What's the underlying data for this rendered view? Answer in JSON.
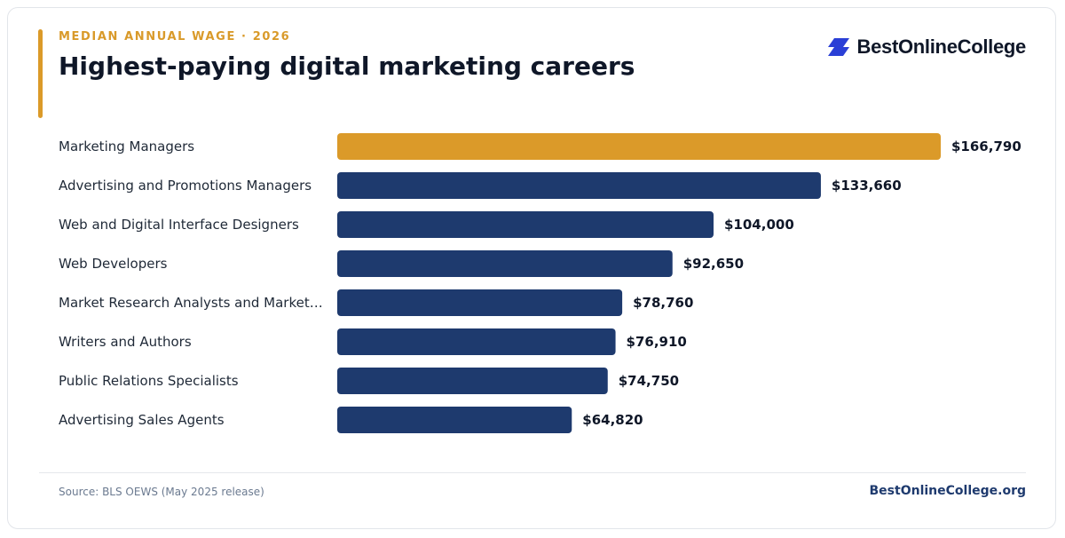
{
  "header": {
    "eyebrow": "MEDIAN ANNUAL WAGE · 2026",
    "title": "Highest-paying digital marketing careers"
  },
  "brand": {
    "name": "BestOnlineCollege",
    "icon": "bestonlinecollege-logo-icon",
    "color": "#2a3fd6"
  },
  "colors": {
    "accent": "#db9a29",
    "bar": "#1e3a6e",
    "text": "#0f1728"
  },
  "chart_data": {
    "type": "bar",
    "orientation": "horizontal",
    "title": "Highest-paying digital marketing careers",
    "subtitle": "MEDIAN ANNUAL WAGE · 2026",
    "categories": [
      "Marketing Managers",
      "Advertising and Promotions Managers",
      "Web and Digital Interface Designers",
      "Web Developers",
      "Market Research Analysts and Market…",
      "Writers and Authors",
      "Public Relations Specialists",
      "Advertising Sales Agents"
    ],
    "values": [
      166790,
      133660,
      104000,
      92650,
      78760,
      76910,
      74750,
      64820
    ],
    "value_labels": [
      "$166,790",
      "$133,660",
      "$104,000",
      "$92,650",
      "$78,760",
      "$76,910",
      "$74,750",
      "$64,820"
    ],
    "highlight_index": 0,
    "xlim": [
      0,
      166790
    ],
    "grid": false,
    "legend": "none",
    "xlabel": "",
    "ylabel": ""
  },
  "footer": {
    "source": "Source: BLS OEWS (May 2025 release)",
    "site": "BestOnlineCollege.org"
  }
}
